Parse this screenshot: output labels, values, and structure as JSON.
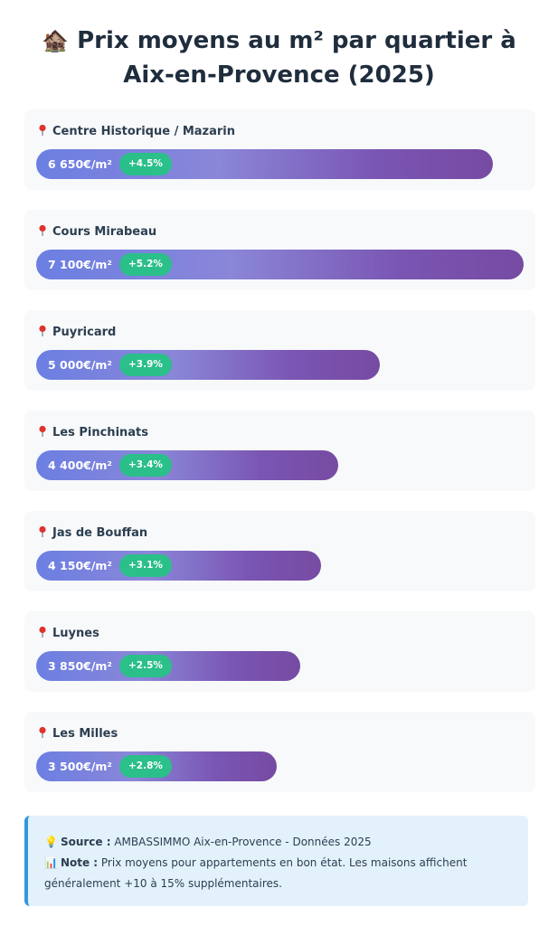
{
  "header": {
    "icon": "house-icon",
    "title_emoji": "🏚️",
    "title": "Prix moyens au m² par quartier à Aix-en-Provence (2025)"
  },
  "chart_data": {
    "type": "bar",
    "orientation": "horizontal",
    "title": "Prix moyens au m² par quartier à Aix-en-Provence (2025)",
    "unit": "€/m²",
    "categories": [
      "Centre Historique / Mazarin",
      "Cours Mirabeau",
      "Puyricard",
      "Les Pinchinats",
      "Jas de Bouffan",
      "Luynes",
      "Les Milles"
    ],
    "values": [
      6650,
      7100,
      5000,
      4400,
      4150,
      3850,
      3500
    ],
    "value_labels": [
      "6 650€/m²",
      "7 100€/m²",
      "5 000€/m²",
      "4 400€/m²",
      "4 150€/m²",
      "3 850€/m²",
      "3 500€/m²"
    ],
    "growth_labels": [
      "+4.5%",
      "+5.2%",
      "+3.9%",
      "+3.4%",
      "+3.1%",
      "+2.5%",
      "+2.8%"
    ],
    "growth_values": [
      4.5,
      5.2,
      3.9,
      3.4,
      3.1,
      2.5,
      2.8
    ],
    "xlim": [
      0,
      7100
    ],
    "grid": false,
    "legend": "none",
    "colors": {
      "bar_start": "#6b7fe2",
      "bar_end": "#764ba2",
      "badge": "#2bbf8a",
      "card_bg": "#f7f9fa"
    }
  },
  "note": {
    "source_icon": "lightbulb-icon",
    "source_emoji": "💡",
    "source_label": "Source :",
    "source_text": " AMBASSIMMO Aix-en-Provence - Données 2025",
    "note_icon": "bar-chart-icon",
    "note_emoji": "📊",
    "note_label": "Note :",
    "note_text": " Prix moyens pour appartements en bon état. Les maisons affichent généralement +10 à 15% supplémentaires."
  }
}
